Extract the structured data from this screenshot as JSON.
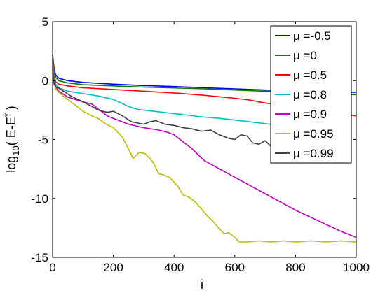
{
  "chart_data": {
    "type": "line",
    "xlabel": "i",
    "ylabel": "log10( E-E* )",
    "ylabel_parts": {
      "base": "log",
      "subscript": "10",
      "open": "( E-E",
      "superscript": "*",
      "close": " )"
    },
    "xlim": [
      0,
      1000
    ],
    "ylim": [
      -15,
      5
    ],
    "x_ticks": [
      0,
      200,
      400,
      600,
      800,
      1000
    ],
    "y_ticks": [
      5,
      0,
      -5,
      -10,
      -15
    ],
    "x_tick_labels": [
      "0",
      "200",
      "400",
      "600",
      "800",
      "1000"
    ],
    "y_tick_labels": [
      "5",
      "0",
      "-5",
      "-10",
      "-15"
    ],
    "grid": false,
    "legend_position": "top-right",
    "series": [
      {
        "name": "μ =-0.5",
        "color": "#0000ff",
        "points": [
          [
            0,
            2.2
          ],
          [
            5,
            1.0
          ],
          [
            10,
            0.5
          ],
          [
            20,
            0.2
          ],
          [
            50,
            0.0
          ],
          [
            100,
            -0.15
          ],
          [
            200,
            -0.3
          ],
          [
            300,
            -0.42
          ],
          [
            400,
            -0.5
          ],
          [
            500,
            -0.6
          ],
          [
            600,
            -0.7
          ],
          [
            700,
            -0.8
          ],
          [
            800,
            -0.88
          ],
          [
            900,
            -0.95
          ],
          [
            1000,
            -1.0
          ]
        ]
      },
      {
        "name": "μ =0",
        "color": "#007f00",
        "points": [
          [
            0,
            2.0
          ],
          [
            5,
            0.8
          ],
          [
            10,
            0.3
          ],
          [
            20,
            0.0
          ],
          [
            50,
            -0.2
          ],
          [
            100,
            -0.35
          ],
          [
            200,
            -0.45
          ],
          [
            300,
            -0.55
          ],
          [
            400,
            -0.62
          ],
          [
            500,
            -0.7
          ],
          [
            600,
            -0.8
          ],
          [
            700,
            -0.9
          ],
          [
            800,
            -1.0
          ],
          [
            900,
            -1.1
          ],
          [
            1000,
            -1.2
          ]
        ]
      },
      {
        "name": "μ =0.5",
        "color": "#ff0000",
        "points": [
          [
            0,
            1.8
          ],
          [
            5,
            0.5
          ],
          [
            10,
            -0.1
          ],
          [
            20,
            -0.3
          ],
          [
            50,
            -0.45
          ],
          [
            100,
            -0.6
          ],
          [
            200,
            -0.75
          ],
          [
            300,
            -0.9
          ],
          [
            400,
            -1.05
          ],
          [
            500,
            -1.25
          ],
          [
            600,
            -1.5
          ],
          [
            650,
            -1.65
          ],
          [
            700,
            -1.9
          ],
          [
            750,
            -2.1
          ],
          [
            800,
            -2.3
          ],
          [
            850,
            -2.5
          ],
          [
            900,
            -2.65
          ],
          [
            950,
            -2.8
          ],
          [
            1000,
            -3.0
          ]
        ]
      },
      {
        "name": "μ =0.8",
        "color": "#00bfbf",
        "points": [
          [
            0,
            1.5
          ],
          [
            5,
            0.2
          ],
          [
            10,
            -0.3
          ],
          [
            20,
            -0.6
          ],
          [
            50,
            -0.9
          ],
          [
            100,
            -1.1
          ],
          [
            150,
            -1.3
          ],
          [
            200,
            -1.6
          ],
          [
            250,
            -2.2
          ],
          [
            280,
            -2.45
          ],
          [
            300,
            -2.5
          ],
          [
            350,
            -2.65
          ],
          [
            400,
            -2.8
          ],
          [
            450,
            -2.95
          ],
          [
            500,
            -3.1
          ],
          [
            550,
            -3.2
          ],
          [
            600,
            -3.35
          ],
          [
            650,
            -3.5
          ],
          [
            700,
            -3.65
          ],
          [
            750,
            -3.8
          ],
          [
            800,
            -3.95
          ],
          [
            850,
            -4.1
          ],
          [
            900,
            -4.2
          ]
        ]
      },
      {
        "name": "μ =0.9",
        "color": "#bf00bf",
        "points": [
          [
            0,
            1.2
          ],
          [
            5,
            0.0
          ],
          [
            10,
            -0.5
          ],
          [
            20,
            -0.9
          ],
          [
            50,
            -1.4
          ],
          [
            100,
            -1.8
          ],
          [
            130,
            -2.0
          ],
          [
            150,
            -2.4
          ],
          [
            180,
            -3.0
          ],
          [
            200,
            -3.2
          ],
          [
            250,
            -3.7
          ],
          [
            300,
            -4.0
          ],
          [
            350,
            -4.2
          ],
          [
            380,
            -4.4
          ],
          [
            400,
            -4.6
          ],
          [
            430,
            -5.2
          ],
          [
            460,
            -5.8
          ],
          [
            500,
            -6.8
          ],
          [
            550,
            -7.5
          ],
          [
            600,
            -8.2
          ],
          [
            650,
            -8.9
          ],
          [
            700,
            -9.6
          ],
          [
            750,
            -10.3
          ],
          [
            800,
            -11.0
          ],
          [
            850,
            -11.6
          ],
          [
            900,
            -12.2
          ],
          [
            950,
            -12.8
          ],
          [
            1000,
            -13.3
          ]
        ]
      },
      {
        "name": "μ =0.95",
        "color": "#bfbf00",
        "points": [
          [
            0,
            1.0
          ],
          [
            5,
            -0.2
          ],
          [
            10,
            -0.7
          ],
          [
            20,
            -1.0
          ],
          [
            50,
            -1.6
          ],
          [
            80,
            -2.2
          ],
          [
            100,
            -2.6
          ],
          [
            130,
            -3.0
          ],
          [
            150,
            -3.2
          ],
          [
            170,
            -3.6
          ],
          [
            200,
            -4.0
          ],
          [
            230,
            -4.8
          ],
          [
            250,
            -5.8
          ],
          [
            265,
            -6.6
          ],
          [
            285,
            -6.1
          ],
          [
            305,
            -6.2
          ],
          [
            330,
            -6.9
          ],
          [
            350,
            -7.9
          ],
          [
            365,
            -8.0
          ],
          [
            385,
            -8.2
          ],
          [
            410,
            -8.9
          ],
          [
            430,
            -9.7
          ],
          [
            450,
            -9.9
          ],
          [
            470,
            -10.3
          ],
          [
            490,
            -10.9
          ],
          [
            510,
            -11.5
          ],
          [
            530,
            -12.0
          ],
          [
            550,
            -12.6
          ],
          [
            565,
            -13.0
          ],
          [
            580,
            -12.9
          ],
          [
            600,
            -13.3
          ],
          [
            615,
            -13.7
          ],
          [
            640,
            -13.7
          ],
          [
            680,
            -13.6
          ],
          [
            720,
            -13.7
          ],
          [
            760,
            -13.6
          ],
          [
            800,
            -13.7
          ],
          [
            850,
            -13.6
          ],
          [
            900,
            -13.7
          ],
          [
            950,
            -13.6
          ],
          [
            1000,
            -13.7
          ]
        ]
      },
      {
        "name": "μ =0.99",
        "color": "#3f3f3f",
        "points": [
          [
            0,
            1.0
          ],
          [
            5,
            -0.3
          ],
          [
            10,
            -0.5
          ],
          [
            30,
            -0.8
          ],
          [
            60,
            -1.3
          ],
          [
            100,
            -1.8
          ],
          [
            130,
            -2.2
          ],
          [
            150,
            -2.5
          ],
          [
            180,
            -2.7
          ],
          [
            200,
            -2.6
          ],
          [
            230,
            -3.0
          ],
          [
            260,
            -3.5
          ],
          [
            280,
            -3.6
          ],
          [
            300,
            -3.7
          ],
          [
            320,
            -3.5
          ],
          [
            340,
            -3.4
          ],
          [
            370,
            -3.7
          ],
          [
            400,
            -3.8
          ],
          [
            430,
            -4.0
          ],
          [
            460,
            -4.1
          ],
          [
            490,
            -4.3
          ],
          [
            520,
            -4.2
          ],
          [
            550,
            -4.6
          ],
          [
            580,
            -4.9
          ],
          [
            600,
            -5.0
          ],
          [
            620,
            -4.6
          ],
          [
            640,
            -4.7
          ],
          [
            660,
            -5.3
          ],
          [
            680,
            -5.4
          ],
          [
            700,
            -5.1
          ],
          [
            720,
            -5.6
          ],
          [
            740,
            -5.2
          ],
          [
            760,
            -5.7
          ],
          [
            780,
            -5.8
          ],
          [
            800,
            -6.0
          ]
        ]
      }
    ]
  }
}
